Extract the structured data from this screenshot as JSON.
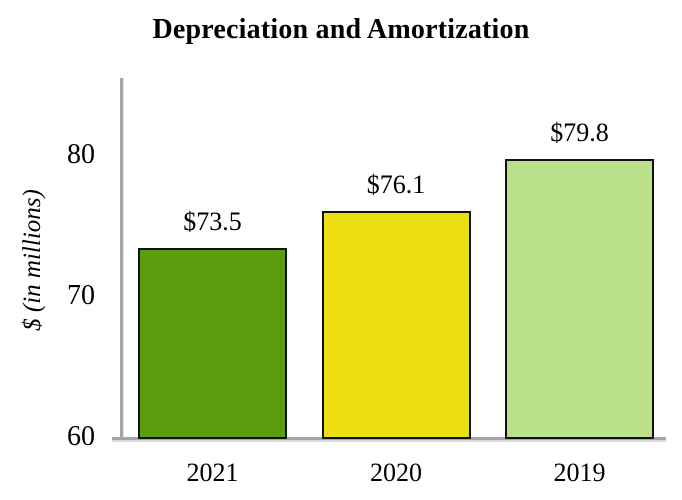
{
  "chart_data": {
    "type": "bar",
    "title": "Depreciation and Amortization",
    "xlabel": "",
    "ylabel": "$ (in millions)",
    "categories": [
      "2021",
      "2020",
      "2019"
    ],
    "values": [
      73.5,
      76.1,
      79.8
    ],
    "bar_labels": [
      "$73.5",
      "$76.1",
      "$79.8"
    ],
    "bar_colors": [
      "#5a9e10",
      "#ecdf11",
      "#bae189"
    ],
    "bar_border_color": "#111111",
    "axis_color": "#a6a6a6",
    "yticks": [
      60,
      70,
      80
    ],
    "ylim": [
      60,
      85.5
    ],
    "grid": false,
    "legend": false
  }
}
